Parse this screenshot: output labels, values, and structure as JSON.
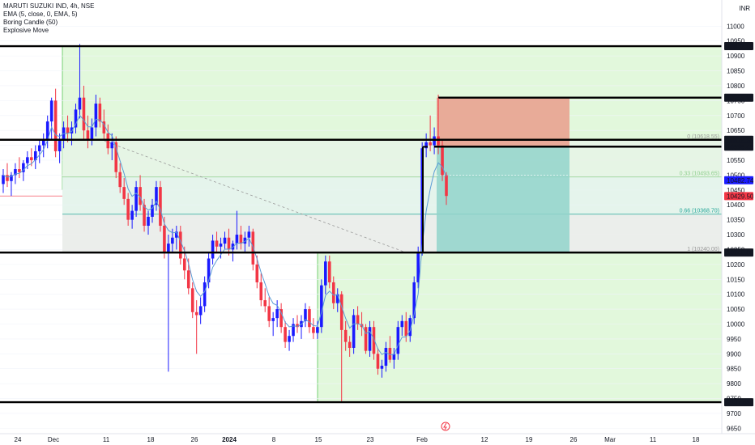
{
  "header": {
    "symbol_line": "MARUTI SUZUKI IND, 4h, NSE",
    "indicators": [
      "EMA (5, close, 0, EMA, 5)",
      "Boring Candle (50)",
      "Explosive Move"
    ]
  },
  "currency": "INR",
  "colors": {
    "up": "#1a1aff",
    "down": "#f23645",
    "green_zone": "#d8f5d0",
    "red_box": "#e9a290",
    "teal_box": "#92d3cb",
    "ema": "#5b9bd5"
  },
  "chart_data": {
    "type": "candlestick",
    "x_tick_labels": [
      "24",
      "Dec",
      "11",
      "18",
      "26",
      "2024",
      "8",
      "15",
      "23",
      "Feb",
      "12",
      "19",
      "26",
      "Mar",
      "11",
      "18"
    ],
    "y_ticks": [
      9650,
      9700,
      9750,
      9800,
      9850,
      9900,
      9950,
      10000,
      10050,
      10100,
      10150,
      10200,
      10250,
      10300,
      10350,
      10400,
      10450,
      10500,
      10550,
      10600,
      10650,
      10700,
      10750,
      10800,
      10850,
      10900,
      10950,
      11000
    ],
    "ylim": [
      9632,
      11047
    ],
    "horizontal_levels": [
      10932.85,
      10759.95,
      10618.55,
      10595.45,
      10240.0,
      9737.65
    ],
    "level_labels": [
      "10932.85",
      "10759.95",
      "10618.55",
      "10595.45",
      "10240.00",
      "9737.65"
    ],
    "current_price_labels": [
      "10482.74",
      "10429.50"
    ],
    "fibonacci": [
      {
        "label": "0 (10618.55)",
        "value": 10618.55
      },
      {
        "label": "0.33 (10493.65)",
        "value": 10493.65
      },
      {
        "label": "0.66 (10368.70)",
        "value": 10368.7
      },
      {
        "label": "1 (10240.00)",
        "value": 10240.0
      }
    ],
    "position": {
      "target": 10759.95,
      "entry": 10595.45,
      "stop": 10240.0
    },
    "candles": [
      [
        10470,
        10520,
        10440,
        10500
      ],
      [
        10500,
        10540,
        10460,
        10480
      ],
      [
        10480,
        10510,
        10430,
        10500
      ],
      [
        10500,
        10540,
        10470,
        10520
      ],
      [
        10520,
        10560,
        10490,
        10510
      ],
      [
        10510,
        10550,
        10480,
        10540
      ],
      [
        10540,
        10580,
        10520,
        10560
      ],
      [
        10560,
        10590,
        10530,
        10550
      ],
      [
        10550,
        10600,
        10520,
        10580
      ],
      [
        10580,
        10620,
        10540,
        10600
      ],
      [
        10600,
        10640,
        10560,
        10620
      ],
      [
        10620,
        10700,
        10590,
        10680
      ],
      [
        10680,
        10760,
        10620,
        10750
      ],
      [
        10750,
        10790,
        10560,
        10580
      ],
      [
        10580,
        10640,
        10540,
        10620
      ],
      [
        10620,
        10680,
        10590,
        10660
      ],
      [
        10660,
        10700,
        10610,
        10640
      ],
      [
        10640,
        10680,
        10600,
        10660
      ],
      [
        10660,
        10740,
        10640,
        10720
      ],
      [
        10720,
        10940,
        10690,
        10760
      ],
      [
        10760,
        10800,
        10620,
        10650
      ],
      [
        10650,
        10700,
        10590,
        10620
      ],
      [
        10620,
        10690,
        10600,
        10660
      ],
      [
        10660,
        10770,
        10630,
        10740
      ],
      [
        10740,
        10760,
        10660,
        10680
      ],
      [
        10680,
        10720,
        10620,
        10640
      ],
      [
        10640,
        10670,
        10570,
        10590
      ],
      [
        10590,
        10640,
        10550,
        10610
      ],
      [
        10610,
        10630,
        10490,
        10510
      ],
      [
        10510,
        10540,
        10440,
        10460
      ],
      [
        10460,
        10490,
        10400,
        10420
      ],
      [
        10420,
        10440,
        10330,
        10350
      ],
      [
        10350,
        10400,
        10320,
        10380
      ],
      [
        10380,
        10480,
        10360,
        10460
      ],
      [
        10460,
        10500,
        10380,
        10400
      ],
      [
        10400,
        10420,
        10310,
        10330
      ],
      [
        10330,
        10380,
        10300,
        10360
      ],
      [
        10360,
        10420,
        10340,
        10400
      ],
      [
        10400,
        10480,
        10380,
        10460
      ],
      [
        10460,
        10480,
        10310,
        10330
      ],
      [
        10330,
        10360,
        10220,
        10240
      ],
      [
        10240,
        10300,
        9840,
        10270
      ],
      [
        10270,
        10320,
        10240,
        10290
      ],
      [
        10290,
        10330,
        10250,
        10310
      ],
      [
        10310,
        10330,
        10200,
        10220
      ],
      [
        10220,
        10260,
        10150,
        10180
      ],
      [
        10180,
        10220,
        10100,
        10120
      ],
      [
        10120,
        10140,
        10020,
        10040
      ],
      [
        10040,
        10080,
        9900,
        10030
      ],
      [
        10030,
        10090,
        10000,
        10060
      ],
      [
        10060,
        10160,
        10040,
        10140
      ],
      [
        10140,
        10240,
        10120,
        10220
      ],
      [
        10220,
        10300,
        10200,
        10280
      ],
      [
        10280,
        10310,
        10240,
        10260
      ],
      [
        10260,
        10290,
        10220,
        10270
      ],
      [
        10270,
        10310,
        10250,
        10290
      ],
      [
        10290,
        10320,
        10230,
        10250
      ],
      [
        10250,
        10280,
        10210,
        10270
      ],
      [
        10270,
        10380,
        10250,
        10300
      ],
      [
        10300,
        10330,
        10250,
        10270
      ],
      [
        10270,
        10310,
        10240,
        10290
      ],
      [
        10290,
        10330,
        10260,
        10310
      ],
      [
        10310,
        10320,
        10180,
        10200
      ],
      [
        10200,
        10230,
        10120,
        10140
      ],
      [
        10140,
        10170,
        10060,
        10080
      ],
      [
        10080,
        10120,
        10040,
        10060
      ],
      [
        10060,
        10090,
        9990,
        10010
      ],
      [
        10010,
        10040,
        9960,
        10020
      ],
      [
        10020,
        10080,
        9990,
        10050
      ],
      [
        10050,
        10070,
        9970,
        9990
      ],
      [
        9990,
        10010,
        9920,
        9940
      ],
      [
        9940,
        9980,
        9910,
        9960
      ],
      [
        9960,
        10020,
        9940,
        10000
      ],
      [
        10000,
        10030,
        9970,
        9990
      ],
      [
        9990,
        10030,
        9950,
        10010
      ],
      [
        10010,
        10070,
        9990,
        10050
      ],
      [
        10050,
        10060,
        9970,
        9990
      ],
      [
        9990,
        10020,
        9950,
        9970
      ],
      [
        9970,
        10010,
        9950,
        9990
      ],
      [
        9990,
        10150,
        9970,
        10130
      ],
      [
        10130,
        10230,
        10100,
        10210
      ],
      [
        10210,
        10230,
        10120,
        10140
      ],
      [
        10140,
        10160,
        10050,
        10070
      ],
      [
        10070,
        10120,
        10040,
        10100
      ],
      [
        10100,
        10110,
        9740,
        9980
      ],
      [
        9980,
        10010,
        9910,
        9940
      ],
      [
        9940,
        9960,
        9890,
        9920
      ],
      [
        9920,
        10050,
        9900,
        10030
      ],
      [
        10030,
        10060,
        9980,
        10000
      ],
      [
        10000,
        10040,
        9960,
        9990
      ],
      [
        9990,
        10000,
        9900,
        9910
      ],
      [
        9910,
        10010,
        9890,
        9990
      ],
      [
        9990,
        10010,
        9880,
        9900
      ],
      [
        9900,
        9920,
        9830,
        9850
      ],
      [
        9850,
        9880,
        9820,
        9860
      ],
      [
        9860,
        9940,
        9840,
        9920
      ],
      [
        9920,
        9960,
        9870,
        9880
      ],
      [
        9880,
        9920,
        9850,
        9900
      ],
      [
        9900,
        10010,
        9880,
        9990
      ],
      [
        9990,
        10030,
        9960,
        10010
      ],
      [
        10010,
        10040,
        9940,
        9960
      ],
      [
        9960,
        10030,
        9940,
        10020
      ],
      [
        10020,
        10160,
        10000,
        10140
      ],
      [
        10140,
        10260,
        10120,
        10240
      ],
      [
        10240,
        10610,
        10230,
        10590
      ],
      [
        10590,
        10640,
        10560,
        10610
      ],
      [
        10610,
        10700,
        10580,
        10600
      ],
      [
        10600,
        10660,
        10570,
        10630
      ],
      [
        10630,
        10770,
        10570,
        10600
      ],
      [
        10600,
        10620,
        10480,
        10500
      ],
      [
        10500,
        10510,
        10400,
        10430
      ]
    ]
  }
}
